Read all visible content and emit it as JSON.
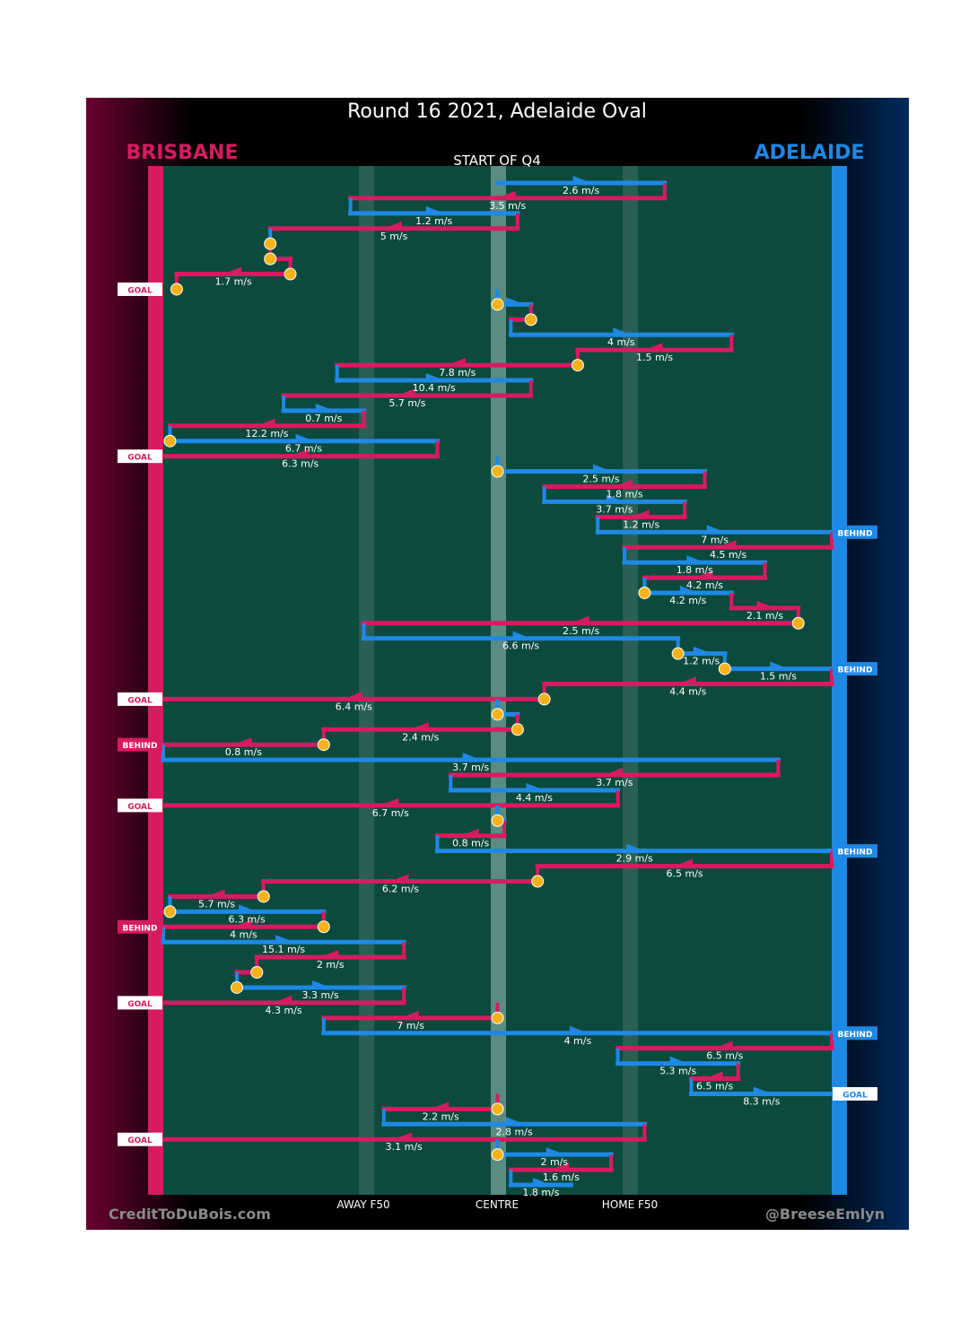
{
  "chart_data": {
    "type": "flow-chain",
    "title": "Round 16 2021, Adelaide Oval",
    "subtitle": "START OF Q4",
    "teams": {
      "left": {
        "name": "BRISBANE",
        "color": "#d81b60"
      },
      "right": {
        "name": "ADELAIDE",
        "color": "#1e88e5"
      }
    },
    "x_axis_labels": [
      "AWAY F50",
      "CENTRE",
      "HOME F50"
    ],
    "credit_left": "CreditToDuBois.com",
    "credit_right": "@BreeseEmlyn",
    "ball_up_color": "#f6b21a",
    "outcome_labels": {
      "goal": "GOAL",
      "behind": "BEHIND"
    },
    "chains": [
      {
        "team": "adelaide",
        "start": 50,
        "end": 75,
        "label": "2.6 m/s"
      },
      {
        "team": "brisbane",
        "start": 75,
        "end": 28,
        "label": "3.5 m/s"
      },
      {
        "team": "adelaide",
        "start": 28,
        "end": 53,
        "label": "1.2 m/s"
      },
      {
        "team": "brisbane",
        "start": 53,
        "end": 16,
        "label": "5 m/s"
      },
      {
        "team": "adelaide",
        "start": 16,
        "end": 16,
        "label": "",
        "ballUp": true
      },
      {
        "team": "brisbane",
        "start": 16,
        "end": 19,
        "label": "",
        "ballUp": true
      },
      {
        "team": "brisbane",
        "start": 19,
        "end": 2,
        "label": "1.7 m/s",
        "ballUp": true
      },
      {
        "team": "brisbane",
        "start": 2,
        "end": 2,
        "label": "",
        "outcome": "GOAL",
        "ballUp": true
      },
      {
        "team": "adelaide",
        "start": 50,
        "end": 55,
        "label": "",
        "ballUp": true
      },
      {
        "team": "brisbane",
        "start": 55,
        "end": 52,
        "label": "",
        "ballUp": true
      },
      {
        "team": "adelaide",
        "start": 52,
        "end": 85,
        "label": "4 m/s"
      },
      {
        "team": "brisbane",
        "start": 85,
        "end": 62,
        "label": "1.5 m/s"
      },
      {
        "team": "brisbane",
        "start": 62,
        "end": 26,
        "label": "7.8 m/s",
        "ballUp": true
      },
      {
        "team": "adelaide",
        "start": 26,
        "end": 55,
        "label": "10.4 m/s"
      },
      {
        "team": "brisbane",
        "start": 55,
        "end": 18,
        "label": "5.7 m/s"
      },
      {
        "team": "adelaide",
        "start": 18,
        "end": 30,
        "label": "0.7 m/s"
      },
      {
        "team": "brisbane",
        "start": 30,
        "end": 1,
        "label": "12.2 m/s"
      },
      {
        "team": "adelaide",
        "start": 1,
        "end": 41,
        "label": "6.7 m/s",
        "ballUp": true
      },
      {
        "team": "brisbane",
        "start": 41,
        "end": 0,
        "label": "6.3 m/s",
        "outcome": "GOAL"
      },
      {
        "team": "adelaide",
        "start": 50,
        "end": 81,
        "label": "2.5 m/s",
        "ballUp": true
      },
      {
        "team": "brisbane",
        "start": 81,
        "end": 57,
        "label": "1.8 m/s"
      },
      {
        "team": "adelaide",
        "start": 57,
        "end": 78,
        "label": "3.7 m/s"
      },
      {
        "team": "brisbane",
        "start": 78,
        "end": 65,
        "label": "1.2 m/s"
      },
      {
        "team": "adelaide",
        "start": 65,
        "end": 100,
        "label": "7 m/s",
        "outcome": "BEHIND"
      },
      {
        "team": "brisbane",
        "start": 100,
        "end": 69,
        "label": "4.5 m/s"
      },
      {
        "team": "adelaide",
        "start": 69,
        "end": 90,
        "label": "1.8 m/s"
      },
      {
        "team": "brisbane",
        "start": 90,
        "end": 72,
        "label": "4.2 m/s"
      },
      {
        "team": "adelaide",
        "start": 72,
        "end": 85,
        "label": "4.2 m/s",
        "ballUp": true
      },
      {
        "team": "brisbane",
        "start": 85,
        "end": 95,
        "label": "2.1 m/s"
      },
      {
        "team": "brisbane",
        "start": 95,
        "end": 30,
        "label": "2.5 m/s",
        "ballUp": true
      },
      {
        "team": "adelaide",
        "start": 30,
        "end": 77,
        "label": "6.6 m/s"
      },
      {
        "team": "adelaide",
        "start": 77,
        "end": 84,
        "label": "1.2 m/s",
        "ballUp": true
      },
      {
        "team": "adelaide",
        "start": 84,
        "end": 100,
        "label": "1.5 m/s",
        "outcome": "BEHIND",
        "ballUp": true
      },
      {
        "team": "brisbane",
        "start": 100,
        "end": 57,
        "label": "4.4 m/s"
      },
      {
        "team": "brisbane",
        "start": 57,
        "end": 0,
        "label": "6.4 m/s",
        "outcome": "GOAL",
        "ballUp": true
      },
      {
        "team": "adelaide",
        "start": 50,
        "end": 53,
        "label": "",
        "ballUp": true
      },
      {
        "team": "brisbane",
        "start": 53,
        "end": 24,
        "label": "2.4 m/s",
        "ballUp": true
      },
      {
        "team": "brisbane",
        "start": 24,
        "end": 0,
        "label": "0.8 m/s",
        "outcome": "BEHIND",
        "ballUp": true
      },
      {
        "team": "adelaide",
        "start": 0,
        "end": 92,
        "label": "3.7 m/s"
      },
      {
        "team": "brisbane",
        "start": 92,
        "end": 43,
        "label": "3.7 m/s"
      },
      {
        "team": "adelaide",
        "start": 43,
        "end": 68,
        "label": "4.4 m/s"
      },
      {
        "team": "brisbane",
        "start": 68,
        "end": 0,
        "label": "6.7 m/s",
        "outcome": "GOAL"
      },
      {
        "team": "adelaide",
        "start": 50,
        "end": 51,
        "label": "",
        "ballUp": true
      },
      {
        "team": "brisbane",
        "start": 51,
        "end": 41,
        "label": "0.8 m/s"
      },
      {
        "team": "adelaide",
        "start": 41,
        "end": 100,
        "label": "2.9 m/s",
        "outcome": "BEHIND"
      },
      {
        "team": "brisbane",
        "start": 100,
        "end": 56,
        "label": "6.5 m/s"
      },
      {
        "team": "brisbane",
        "start": 56,
        "end": 15,
        "label": "6.2 m/s",
        "ballUp": true
      },
      {
        "team": "brisbane",
        "start": 15,
        "end": 1,
        "label": "5.7 m/s",
        "ballUp": true
      },
      {
        "team": "adelaide",
        "start": 1,
        "end": 24,
        "label": "6.3 m/s",
        "ballUp": true
      },
      {
        "team": "brisbane",
        "start": 24,
        "end": 0,
        "label": "4 m/s",
        "outcome": "BEHIND",
        "ballUp": true
      },
      {
        "team": "adelaide",
        "start": 0,
        "end": 36,
        "label": "15.1 m/s"
      },
      {
        "team": "brisbane",
        "start": 36,
        "end": 14,
        "label": "2 m/s"
      },
      {
        "team": "brisbane",
        "start": 14,
        "end": 11,
        "label": "",
        "ballUp": true
      },
      {
        "team": "adelaide",
        "start": 11,
        "end": 36,
        "label": "3.3 m/s",
        "ballUp": true
      },
      {
        "team": "brisbane",
        "start": 36,
        "end": 0,
        "label": "4.3 m/s",
        "outcome": "GOAL"
      },
      {
        "team": "brisbane",
        "start": 50,
        "end": 24,
        "label": "7 m/s",
        "ballUp": true
      },
      {
        "team": "adelaide",
        "start": 24,
        "end": 100,
        "label": "4 m/s",
        "outcome": "BEHIND"
      },
      {
        "team": "brisbane",
        "start": 100,
        "end": 68,
        "label": "6.5 m/s"
      },
      {
        "team": "adelaide",
        "start": 68,
        "end": 86,
        "label": "5.3 m/s"
      },
      {
        "team": "brisbane",
        "start": 86,
        "end": 79,
        "label": "6.5 m/s"
      },
      {
        "team": "adelaide",
        "start": 79,
        "end": 100,
        "label": "8.3 m/s",
        "outcome": "GOAL"
      },
      {
        "team": "brisbane",
        "start": 50,
        "end": 33,
        "label": "2.2 m/s",
        "ballUp": true
      },
      {
        "team": "adelaide",
        "start": 33,
        "end": 72,
        "label": "2.8 m/s"
      },
      {
        "team": "brisbane",
        "start": 72,
        "end": 0,
        "label": "3.1 m/s",
        "outcome": "GOAL"
      },
      {
        "team": "adelaide",
        "start": 50,
        "end": 67,
        "label": "2 m/s",
        "ballUp": true
      },
      {
        "team": "brisbane",
        "start": 67,
        "end": 52,
        "label": "1.6 m/s"
      },
      {
        "team": "adelaide",
        "start": 52,
        "end": 61,
        "label": "1.8 m/s"
      }
    ]
  }
}
